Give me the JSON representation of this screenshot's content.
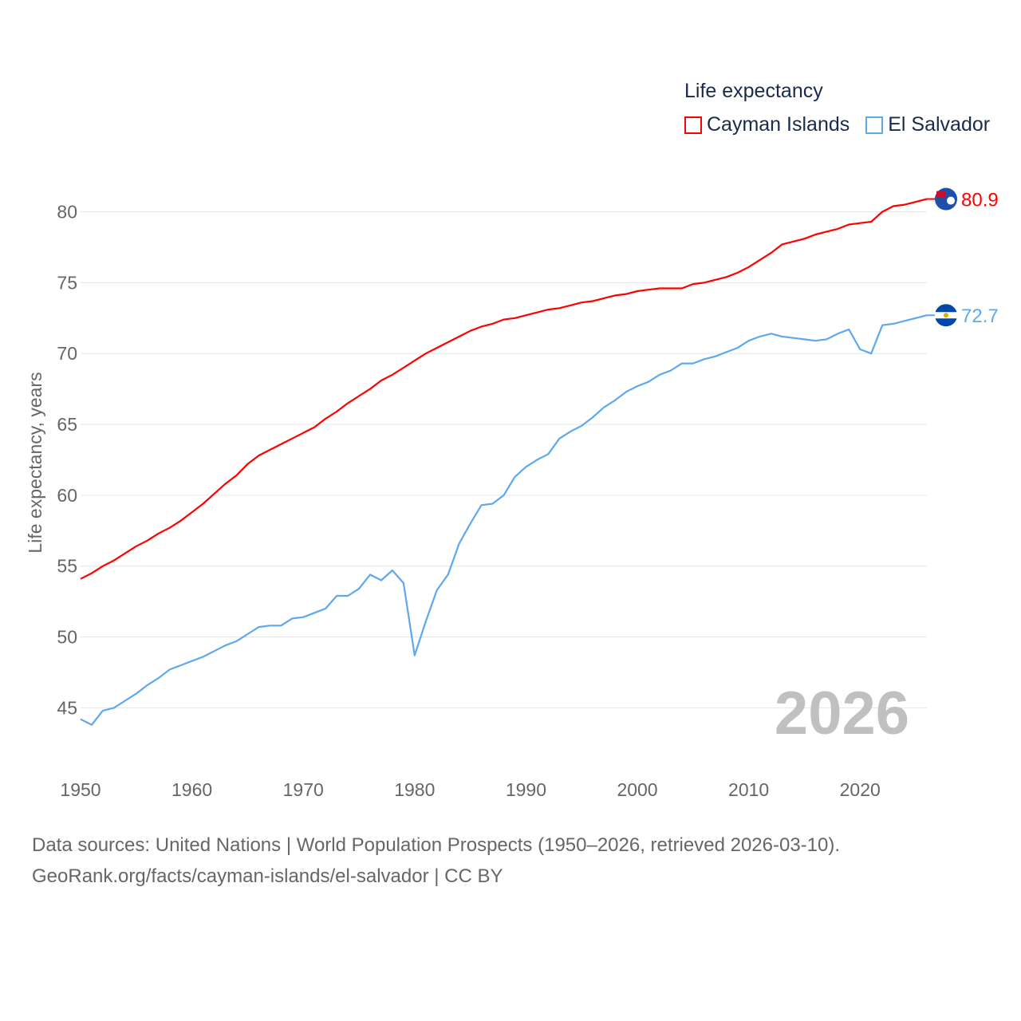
{
  "chart_data": {
    "type": "line",
    "title": "Life expectancy",
    "ylabel": "Life expectancy, years",
    "xlabel": "",
    "xlim": [
      1950,
      2026
    ],
    "ylim": [
      42.6,
      82.0
    ],
    "xticks": [
      1950,
      1960,
      1970,
      1980,
      1990,
      2000,
      2010,
      2020
    ],
    "yticks": [
      45,
      50,
      55,
      60,
      65,
      70,
      75,
      80
    ],
    "grid": true,
    "legend_placement": "top-right",
    "year_label": "2026",
    "x": [
      1950,
      1951,
      1952,
      1953,
      1954,
      1955,
      1956,
      1957,
      1958,
      1959,
      1960,
      1961,
      1962,
      1963,
      1964,
      1965,
      1966,
      1967,
      1968,
      1969,
      1970,
      1971,
      1972,
      1973,
      1974,
      1975,
      1976,
      1977,
      1978,
      1979,
      1980,
      1981,
      1982,
      1983,
      1984,
      1985,
      1986,
      1987,
      1988,
      1989,
      1990,
      1991,
      1992,
      1993,
      1994,
      1995,
      1996,
      1997,
      1998,
      1999,
      2000,
      2001,
      2002,
      2003,
      2004,
      2005,
      2006,
      2007,
      2008,
      2009,
      2010,
      2011,
      2012,
      2013,
      2014,
      2015,
      2016,
      2017,
      2018,
      2019,
      2020,
      2021,
      2022,
      2023,
      2024,
      2025,
      2026
    ],
    "series": [
      {
        "name": "Cayman Islands",
        "color": "#ff0000",
        "end_label": "80.9",
        "values": [
          54.1,
          54.5,
          55.0,
          55.4,
          55.9,
          56.4,
          56.8,
          57.3,
          57.7,
          58.2,
          58.8,
          59.4,
          60.1,
          60.8,
          61.4,
          62.2,
          62.8,
          63.2,
          63.6,
          64.0,
          64.4,
          64.8,
          65.4,
          65.9,
          66.5,
          67.0,
          67.5,
          68.1,
          68.5,
          69.0,
          69.5,
          70.0,
          70.4,
          70.8,
          71.2,
          71.6,
          71.9,
          72.1,
          72.4,
          72.5,
          72.7,
          72.9,
          73.1,
          73.2,
          73.4,
          73.6,
          73.7,
          73.9,
          74.1,
          74.2,
          74.4,
          74.5,
          74.6,
          74.6,
          74.6,
          74.9,
          75.0,
          75.2,
          75.4,
          75.7,
          76.1,
          76.6,
          77.1,
          77.7,
          77.9,
          78.1,
          78.4,
          78.6,
          78.8,
          79.1,
          79.2,
          79.3,
          80.0,
          80.4,
          80.5,
          80.7,
          80.9
        ]
      },
      {
        "name": "El Salvador",
        "color": "#5ea8ee",
        "end_label": "72.7",
        "values": [
          44.2,
          43.8,
          44.8,
          45.0,
          45.5,
          46.0,
          46.6,
          47.1,
          47.7,
          48.0,
          48.3,
          48.6,
          49.0,
          49.4,
          49.7,
          50.2,
          50.7,
          50.8,
          50.8,
          51.3,
          51.4,
          51.7,
          52.0,
          52.9,
          52.9,
          53.4,
          54.4,
          54.0,
          54.7,
          53.8,
          48.7,
          51.1,
          53.3,
          54.4,
          56.6,
          58.0,
          59.3,
          59.4,
          60.0,
          61.3,
          62.0,
          62.5,
          62.9,
          64.0,
          64.5,
          64.9,
          65.5,
          66.2,
          66.7,
          67.3,
          67.7,
          68.0,
          68.5,
          68.8,
          69.3,
          69.3,
          69.6,
          69.8,
          70.1,
          70.4,
          70.9,
          71.2,
          71.4,
          71.2,
          71.1,
          71.0,
          70.9,
          71.0,
          71.4,
          71.7,
          70.3,
          70.0,
          72.0,
          72.1,
          72.3,
          72.5,
          72.7
        ]
      }
    ]
  },
  "footer": {
    "line1": "Data sources: United Nations | World Population Prospects (1950–2026, retrieved 2026-03-10).",
    "line2": "GeoRank.org/facts/cayman-islands/el-salvador | CC BY"
  }
}
